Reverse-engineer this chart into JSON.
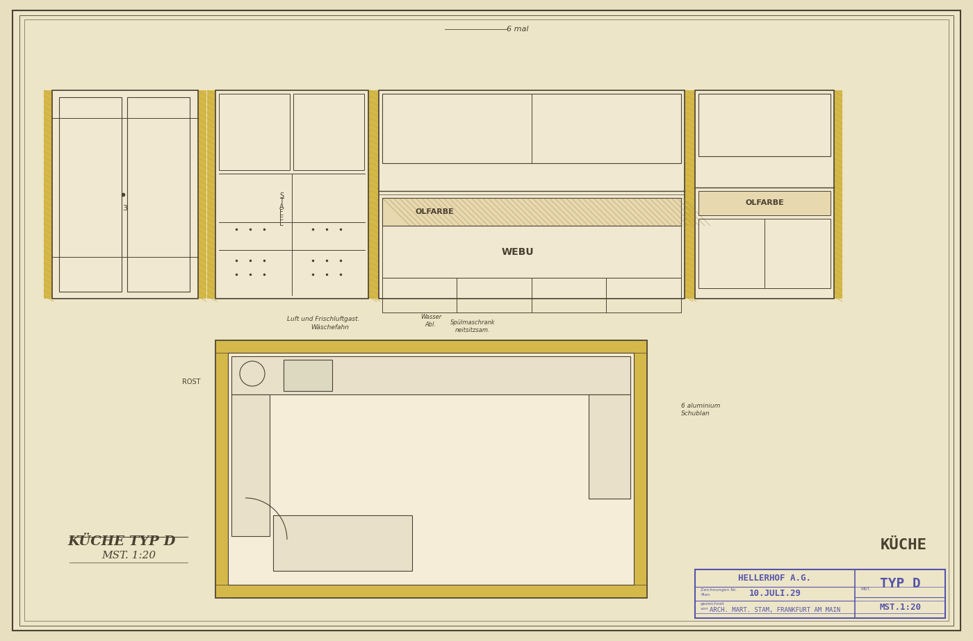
{
  "background_color": "#e8dfc0",
  "paper_color": "#ede5c8",
  "border_color": "#8a7a5a",
  "line_color": "#4a4030",
  "yellow_highlight": "#d4b84a",
  "blue_stamp_color": "#5555aa",
  "title_main": "KÜCHE",
  "title_type": "TYP D",
  "stamp_line1": "HELLERHOF A.G.",
  "stamp_line2": "10.JULI.29",
  "stamp_line3": "MST.1:20",
  "stamp_line4": "ARCH. MART. STAM, FRANKFURT AM MAIN",
  "corner_label": "6 mal",
  "left_title": "KÜCHE TYP D",
  "left_subtitle": "MST. 1:20",
  "label_olfarbe1": "OLFARBE",
  "label_webu": "WEBU",
  "label_olfarbe2": "OLFARBE",
  "label_rost": "ROST"
}
